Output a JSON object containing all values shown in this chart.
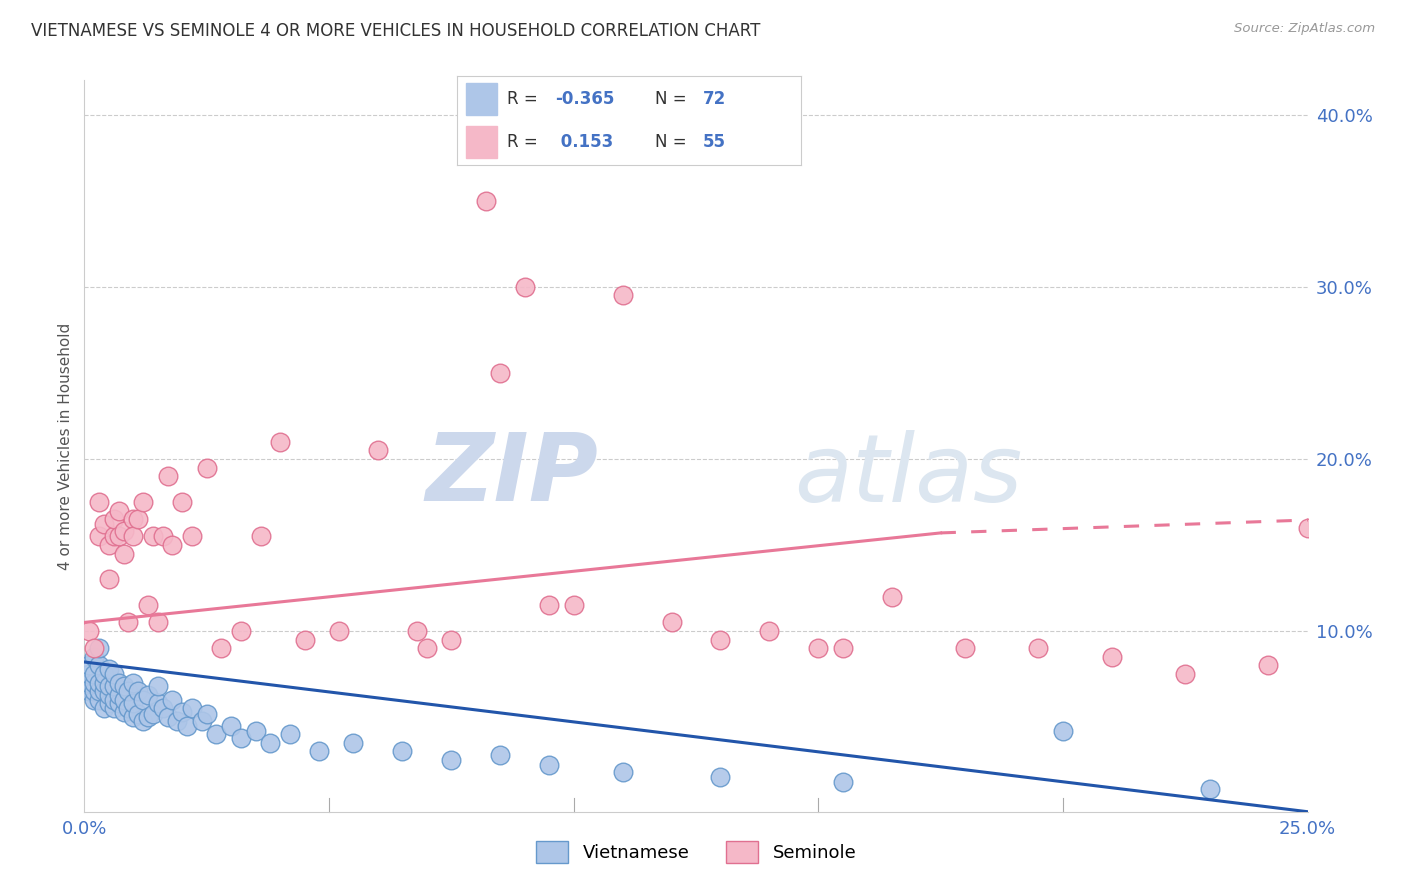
{
  "title": "VIETNAMESE VS SEMINOLE 4 OR MORE VEHICLES IN HOUSEHOLD CORRELATION CHART",
  "source": "Source: ZipAtlas.com",
  "ylabel_label": "4 or more Vehicles in Household",
  "xmin": 0.0,
  "xmax": 0.25,
  "ymin": -0.005,
  "ymax": 0.42,
  "scatter_blue_color": "#aec6e8",
  "scatter_blue_edge": "#6699cc",
  "scatter_pink_color": "#f5b8c8",
  "scatter_pink_edge": "#e07090",
  "line_blue_color": "#2255aa",
  "line_pink_color": "#e87898",
  "line_blue_start_y": 0.082,
  "line_blue_end_y": -0.005,
  "line_blue_start_x": 0.0,
  "line_blue_end_x": 0.25,
  "line_pink_start_y": 0.105,
  "line_pink_end_y": 0.157,
  "line_pink_start_x": 0.0,
  "line_pink_end_x": 0.175,
  "line_pink_dash_start_x": 0.175,
  "line_pink_dash_end_x": 0.255,
  "line_pink_dash_start_y": 0.157,
  "line_pink_dash_end_y": 0.165,
  "watermark_zip": "ZIP",
  "watermark_atlas": "atlas",
  "blue_scatter_x": [
    0.001,
    0.001,
    0.001,
    0.001,
    0.002,
    0.002,
    0.002,
    0.002,
    0.002,
    0.003,
    0.003,
    0.003,
    0.003,
    0.003,
    0.004,
    0.004,
    0.004,
    0.004,
    0.005,
    0.005,
    0.005,
    0.005,
    0.006,
    0.006,
    0.006,
    0.006,
    0.007,
    0.007,
    0.007,
    0.008,
    0.008,
    0.008,
    0.009,
    0.009,
    0.01,
    0.01,
    0.01,
    0.011,
    0.011,
    0.012,
    0.012,
    0.013,
    0.013,
    0.014,
    0.015,
    0.015,
    0.016,
    0.017,
    0.018,
    0.019,
    0.02,
    0.021,
    0.022,
    0.024,
    0.025,
    0.027,
    0.03,
    0.032,
    0.035,
    0.038,
    0.042,
    0.048,
    0.055,
    0.065,
    0.075,
    0.085,
    0.095,
    0.11,
    0.13,
    0.155,
    0.2,
    0.23
  ],
  "blue_scatter_y": [
    0.065,
    0.07,
    0.075,
    0.08,
    0.06,
    0.065,
    0.07,
    0.075,
    0.085,
    0.06,
    0.065,
    0.07,
    0.08,
    0.09,
    0.055,
    0.065,
    0.07,
    0.075,
    0.058,
    0.063,
    0.068,
    0.078,
    0.055,
    0.06,
    0.068,
    0.075,
    0.058,
    0.063,
    0.07,
    0.053,
    0.06,
    0.068,
    0.055,
    0.065,
    0.05,
    0.058,
    0.07,
    0.052,
    0.065,
    0.048,
    0.06,
    0.05,
    0.063,
    0.052,
    0.058,
    0.068,
    0.055,
    0.05,
    0.06,
    0.048,
    0.053,
    0.045,
    0.055,
    0.048,
    0.052,
    0.04,
    0.045,
    0.038,
    0.042,
    0.035,
    0.04,
    0.03,
    0.035,
    0.03,
    0.025,
    0.028,
    0.022,
    0.018,
    0.015,
    0.012,
    0.042,
    0.008
  ],
  "pink_scatter_x": [
    0.001,
    0.002,
    0.003,
    0.003,
    0.004,
    0.005,
    0.005,
    0.006,
    0.006,
    0.007,
    0.007,
    0.008,
    0.008,
    0.009,
    0.01,
    0.01,
    0.011,
    0.012,
    0.013,
    0.014,
    0.015,
    0.016,
    0.017,
    0.018,
    0.02,
    0.022,
    0.025,
    0.028,
    0.032,
    0.036,
    0.04,
    0.045,
    0.052,
    0.06,
    0.068,
    0.075,
    0.082,
    0.09,
    0.1,
    0.11,
    0.12,
    0.13,
    0.14,
    0.155,
    0.165,
    0.18,
    0.195,
    0.21,
    0.225,
    0.242,
    0.25,
    0.085,
    0.095,
    0.15,
    0.07
  ],
  "pink_scatter_y": [
    0.1,
    0.09,
    0.155,
    0.175,
    0.162,
    0.13,
    0.15,
    0.155,
    0.165,
    0.155,
    0.17,
    0.145,
    0.158,
    0.105,
    0.165,
    0.155,
    0.165,
    0.175,
    0.115,
    0.155,
    0.105,
    0.155,
    0.19,
    0.15,
    0.175,
    0.155,
    0.195,
    0.09,
    0.1,
    0.155,
    0.21,
    0.095,
    0.1,
    0.205,
    0.1,
    0.095,
    0.35,
    0.3,
    0.115,
    0.295,
    0.105,
    0.095,
    0.1,
    0.09,
    0.12,
    0.09,
    0.09,
    0.085,
    0.075,
    0.08,
    0.16,
    0.25,
    0.115,
    0.09,
    0.09
  ]
}
